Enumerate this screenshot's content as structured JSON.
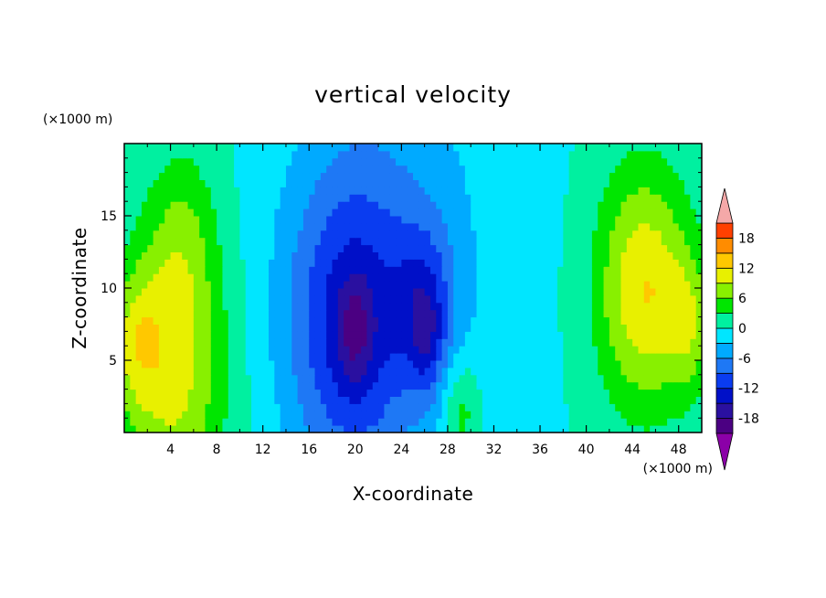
{
  "chart_data": {
    "type": "heatmap",
    "title": "vertical velocity",
    "xlabel": "X-coordinate",
    "ylabel": "Z-coordinate",
    "x_unit_label": "(×1000 m)",
    "y_unit_label": "(×1000 m)",
    "xlim": [
      0,
      50
    ],
    "ylim": [
      0,
      20
    ],
    "x_ticks": [
      4,
      8,
      12,
      16,
      20,
      24,
      28,
      32,
      36,
      40,
      44,
      48
    ],
    "y_ticks": [
      5,
      10,
      15
    ],
    "colorbar": {
      "levels": [
        -21,
        -18,
        -15,
        -12,
        -9,
        -6,
        -3,
        0,
        3,
        6,
        9,
        12,
        15,
        18,
        21
      ],
      "labels": [
        "18",
        "12",
        "6",
        "0",
        "-6",
        "-12",
        "-18"
      ],
      "label_values": [
        18,
        12,
        6,
        0,
        -6,
        -12,
        -18
      ],
      "colors": [
        "#4b0082",
        "#2a10a0",
        "#0010c8",
        "#0a3cf0",
        "#1e78f5",
        "#00aaff",
        "#00e6ff",
        "#00f0a0",
        "#00e600",
        "#88f000",
        "#e8f000",
        "#ffc800",
        "#ff8c00",
        "#ff4000",
        "#f01010"
      ],
      "under_color": "#8b00a8",
      "over_color": "#f4a8a8",
      "extend": "both"
    },
    "features": [
      {
        "x": 4.2,
        "z": 4.0,
        "w": 8.0,
        "amp": 10
      },
      {
        "x": 1.0,
        "z": 6.5,
        "w": 3.0,
        "amp": 6
      },
      {
        "x": 5.0,
        "z": 13.5,
        "w": 5.0,
        "amp": 5
      },
      {
        "x": 45.0,
        "z": 10.0,
        "w": 7.0,
        "amp": 12
      },
      {
        "x": 49.0,
        "z": 7.5,
        "w": 3.0,
        "amp": 6
      },
      {
        "x": 29.2,
        "z": 1.5,
        "w": 2.0,
        "amp": 6
      },
      {
        "x": 19.5,
        "z": 7.5,
        "w": 10.0,
        "amp": -11
      },
      {
        "x": 26.0,
        "z": 9.0,
        "w": 4.0,
        "amp": -7
      },
      {
        "x": 20.0,
        "z": 7.0,
        "w": 2.0,
        "amp": -6
      },
      {
        "x": 26.2,
        "z": 6.5,
        "w": 1.5,
        "amp": -5
      },
      {
        "x": 24.0,
        "z": 13.0,
        "w": 18.0,
        "amp": -4
      }
    ]
  }
}
